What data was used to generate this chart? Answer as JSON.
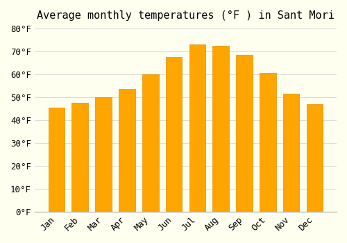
{
  "title": "Average monthly temperatures (°F ) in Sant Mori",
  "months": [
    "Jan",
    "Feb",
    "Mar",
    "Apr",
    "May",
    "Jun",
    "Jul",
    "Aug",
    "Sep",
    "Oct",
    "Nov",
    "Dec"
  ],
  "values": [
    45.5,
    47.5,
    50.0,
    53.5,
    60.0,
    67.5,
    73.0,
    72.5,
    68.5,
    60.5,
    51.5,
    47.0
  ],
  "bar_color": "#FFA500",
  "bar_edge_color": "#E09000",
  "background_color": "#FFFFF0",
  "grid_color": "#DDDDDD",
  "ylim": [
    0,
    80
  ],
  "yticks": [
    0,
    10,
    20,
    30,
    40,
    50,
    60,
    70,
    80
  ],
  "title_fontsize": 11,
  "tick_fontsize": 9
}
